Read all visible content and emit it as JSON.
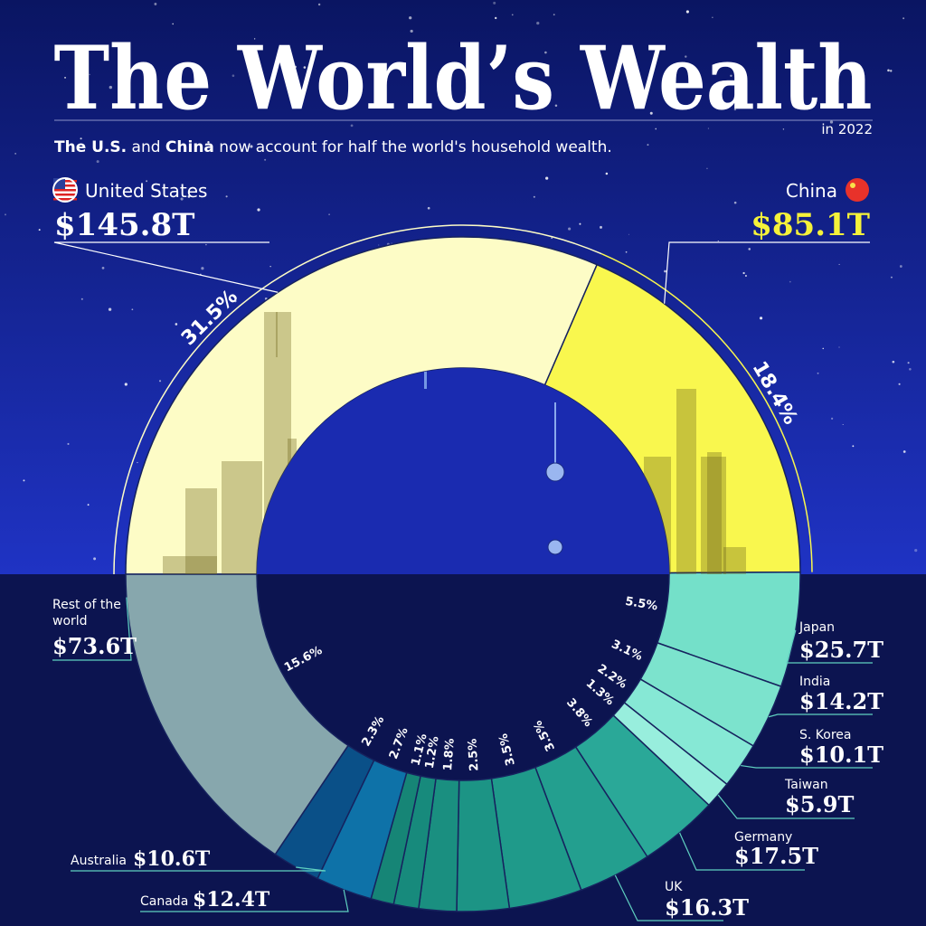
{
  "chart_data": {
    "type": "donut",
    "title": "The World’s Wealth",
    "date_note": "in 2022",
    "subtitle": [
      {
        "text": "The U.S.",
        "bold": true
      },
      {
        "text": " and ",
        "bold": false
      },
      {
        "text": "China",
        "bold": true
      },
      {
        "text": " now account for half the world's household wealth.",
        "bold": false
      }
    ],
    "categories": [
      "United States",
      "China",
      "Japan",
      "India",
      "S. Korea",
      "Taiwan",
      "Germany",
      "UK",
      null,
      null,
      null,
      null,
      null,
      "Canada",
      "Australia",
      "Rest of the world"
    ],
    "values": [
      31.5,
      18.4,
      5.5,
      3.1,
      2.2,
      1.3,
      3.8,
      3.5,
      3.5,
      2.5,
      1.8,
      1.2,
      1.1,
      2.7,
      2.3,
      15.6
    ],
    "value_labels": [
      "31.5%",
      "18.4%",
      "5.5%",
      "3.1%",
      "2.2%",
      "1.3%",
      "3.8%",
      "3.5%",
      "3.5%",
      "2.5%",
      "1.8%",
      "1.2%",
      "1.1%",
      "2.7%",
      "2.3%",
      "15.6%"
    ],
    "wealth": [
      145.8,
      85.1,
      25.7,
      14.2,
      10.1,
      5.9,
      17.5,
      16.3,
      null,
      null,
      null,
      null,
      null,
      12.4,
      10.6,
      73.6
    ],
    "wealth_labels": [
      "$145.8T",
      "$85.1T",
      "$25.7T",
      "$14.2T",
      "$10.1T",
      "$5.9T",
      "$17.5T",
      "$16.3T",
      null,
      null,
      null,
      null,
      null,
      "$12.4T",
      "$10.6T",
      "$73.6T"
    ],
    "colors": [
      "#fdfcc6",
      "#f9f74e",
      "#74e0c9",
      "#7ce3cd",
      "#86e8d5",
      "#98eedd",
      "#2aa898",
      "#239f8f",
      "#1f9a8a",
      "#1c9485",
      "#1a8f80",
      "#178a7c",
      "#168576",
      "#0e72a8",
      "#0a5088",
      "#87a7ad"
    ]
  }
}
